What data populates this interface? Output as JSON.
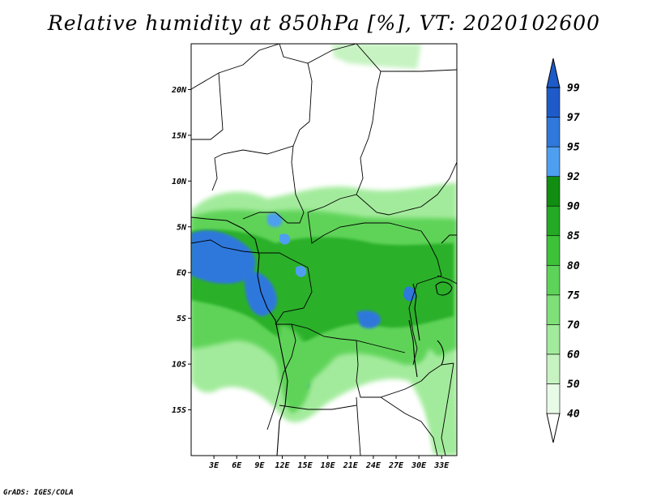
{
  "title": "Relative humidity at 850hPa [%], VT: 2020102600",
  "footer": "GrADS: IGES/COLA",
  "lat_labels": [
    "20N",
    "15N",
    "10N",
    "5N",
    "EQ",
    "5S",
    "10S",
    "15S"
  ],
  "lon_labels": [
    "3E",
    "6E",
    "9E",
    "12E",
    "15E",
    "18E",
    "21E",
    "24E",
    "27E",
    "30E",
    "33E"
  ],
  "colorbar": {
    "labels": [
      "40",
      "50",
      "60",
      "70",
      "75",
      "80",
      "85",
      "90",
      "92",
      "95",
      "97",
      "99"
    ],
    "colors": [
      "#ffffff",
      "#e8fbe6",
      "#c6f3c1",
      "#a3eb9c",
      "#7fdf78",
      "#5ed359",
      "#3dc23a",
      "#24aa24",
      "#118d11",
      "#4e9ff0",
      "#2f78dc",
      "#1e5bc8"
    ]
  },
  "extent": {
    "lon_min": 0,
    "lon_max": 35,
    "lat_min": -20,
    "lat_max": 25
  }
}
